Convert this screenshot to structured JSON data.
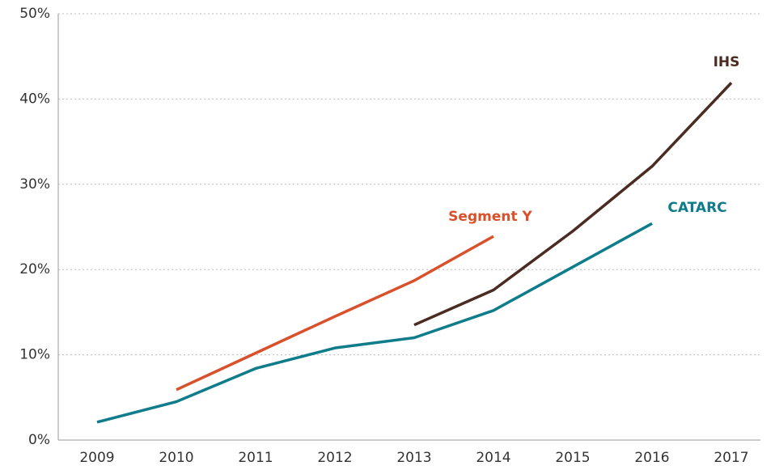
{
  "chart_data": {
    "type": "line",
    "categories": [
      "2009",
      "2010",
      "2011",
      "2012",
      "2013",
      "2014",
      "2015",
      "2016",
      "2017"
    ],
    "series": [
      {
        "name": "CATARC",
        "color": "#0e7c8a",
        "values": [
          2.1,
          4.5,
          8.4,
          10.8,
          12.0,
          15.2,
          20.3,
          25.4,
          null
        ]
      },
      {
        "name": "Segment Y",
        "color": "#d9502b",
        "values": [
          null,
          5.9,
          10.2,
          14.5,
          18.7,
          23.9,
          null,
          null,
          null
        ]
      },
      {
        "name": "IHS",
        "color": "#4a2c22",
        "values": [
          null,
          null,
          null,
          null,
          13.5,
          17.6,
          24.5,
          32.1,
          41.9
        ]
      }
    ],
    "ylim": [
      0,
      50
    ],
    "yticks": [
      {
        "value": 0,
        "label": "0%"
      },
      {
        "value": 10,
        "label": "10%"
      },
      {
        "value": 20,
        "label": "20%"
      },
      {
        "value": 30,
        "label": "30%"
      },
      {
        "value": 40,
        "label": "40%"
      },
      {
        "value": 50,
        "label": "50%"
      }
    ],
    "grid": true
  }
}
